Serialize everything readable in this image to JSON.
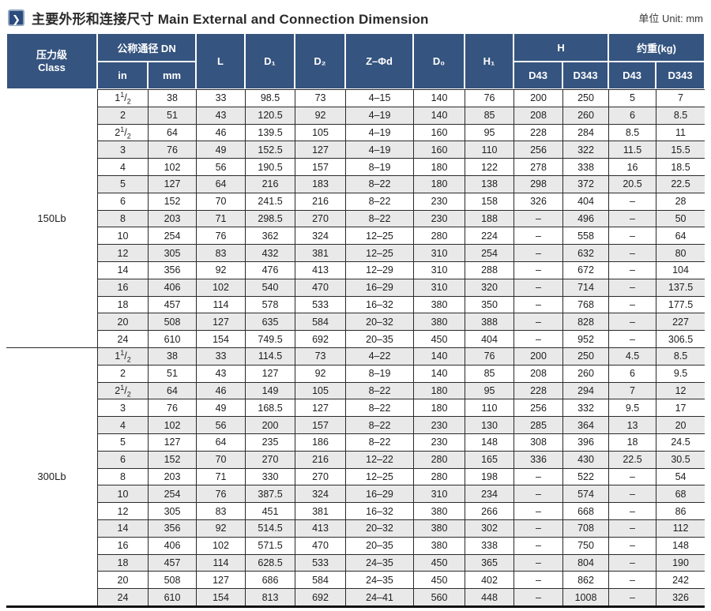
{
  "title": {
    "zh": "主要外形和连接尺寸",
    "en": "Main External and Connection Dimension",
    "full": "主要外形和连接尺寸 Main External and Connection Dimension",
    "icon": "chevron-right-icon",
    "icon_glyph": "❯"
  },
  "unit_label": "单位 Unit: mm",
  "colors": {
    "header_blue": "#35547f",
    "stripe_gray": "#e9e9e9",
    "grid_line": "#2a2a2a",
    "icon_blue": "#2c4c7d",
    "icon_border": "#93a6c4"
  },
  "chart_data": {
    "type": "table",
    "title": "主要外形和连接尺寸 Main External and Connection Dimension",
    "unit": "mm",
    "columns": [
      "压力级 Class",
      "公称通径 DN in",
      "公称通径 DN mm",
      "L",
      "D₁",
      "D₂",
      "Z–Φd",
      "D₀",
      "H₁",
      "H D43",
      "H D343",
      "约重(kg) D43",
      "约重(kg) D343"
    ]
  },
  "table": {
    "headers": {
      "class_zh": "压力级",
      "class_en": "Class",
      "dn": "公称通径 DN",
      "in": "in",
      "mm": "mm",
      "l": "L",
      "d1": "D₁",
      "d2": "D₂",
      "zphid": "Z–Φd",
      "d0": "D₀",
      "h1": "H₁",
      "h": "H",
      "weight": "约重(kg)",
      "h_d43": "D43",
      "h_d343": "D343",
      "w_d43": "D43",
      "w_d343": "D343"
    },
    "col_keys": [
      "in",
      "mm",
      "l",
      "d1",
      "d2",
      "z-phid",
      "d0",
      "h1",
      "h-d43",
      "h-d343",
      "weight-d43",
      "weight-d343"
    ],
    "sections": [
      {
        "class_label": "150Lb",
        "rows": [
          [
            "1½",
            "38",
            "33",
            "98.5",
            "73",
            "4–15",
            "140",
            "76",
            "200",
            "250",
            "5",
            "7"
          ],
          [
            "2",
            "51",
            "43",
            "120.5",
            "92",
            "4–19",
            "140",
            "85",
            "208",
            "260",
            "6",
            "8.5"
          ],
          [
            "2½",
            "64",
            "46",
            "139.5",
            "105",
            "4–19",
            "160",
            "95",
            "228",
            "284",
            "8.5",
            "11"
          ],
          [
            "3",
            "76",
            "49",
            "152.5",
            "127",
            "4–19",
            "160",
            "110",
            "256",
            "322",
            "11.5",
            "15.5"
          ],
          [
            "4",
            "102",
            "56",
            "190.5",
            "157",
            "8–19",
            "180",
            "122",
            "278",
            "338",
            "16",
            "18.5"
          ],
          [
            "5",
            "127",
            "64",
            "216",
            "183",
            "8–22",
            "180",
            "138",
            "298",
            "372",
            "20.5",
            "22.5"
          ],
          [
            "6",
            "152",
            "70",
            "241.5",
            "216",
            "8–22",
            "230",
            "158",
            "326",
            "404",
            "–",
            "28"
          ],
          [
            "8",
            "203",
            "71",
            "298.5",
            "270",
            "8–22",
            "230",
            "188",
            "–",
            "496",
            "–",
            "50"
          ],
          [
            "10",
            "254",
            "76",
            "362",
            "324",
            "12–25",
            "280",
            "224",
            "–",
            "558",
            "–",
            "64"
          ],
          [
            "12",
            "305",
            "83",
            "432",
            "381",
            "12–25",
            "310",
            "254",
            "–",
            "632",
            "–",
            "80"
          ],
          [
            "14",
            "356",
            "92",
            "476",
            "413",
            "12–29",
            "310",
            "288",
            "–",
            "672",
            "–",
            "104"
          ],
          [
            "16",
            "406",
            "102",
            "540",
            "470",
            "16–29",
            "310",
            "320",
            "–",
            "714",
            "–",
            "137.5"
          ],
          [
            "18",
            "457",
            "114",
            "578",
            "533",
            "16–32",
            "380",
            "350",
            "–",
            "768",
            "–",
            "177.5"
          ],
          [
            "20",
            "508",
            "127",
            "635",
            "584",
            "20–32",
            "380",
            "388",
            "–",
            "828",
            "–",
            "227"
          ],
          [
            "24",
            "610",
            "154",
            "749.5",
            "692",
            "20–35",
            "450",
            "404",
            "–",
            "952",
            "–",
            "306.5"
          ]
        ]
      },
      {
        "class_label": "300Lb",
        "rows": [
          [
            "1½",
            "38",
            "33",
            "114.5",
            "73",
            "4–22",
            "140",
            "76",
            "200",
            "250",
            "4.5",
            "8.5"
          ],
          [
            "2",
            "51",
            "43",
            "127",
            "92",
            "8–19",
            "140",
            "85",
            "208",
            "260",
            "6",
            "9.5"
          ],
          [
            "2½",
            "64",
            "46",
            "149",
            "105",
            "8–22",
            "180",
            "95",
            "228",
            "294",
            "7",
            "12"
          ],
          [
            "3",
            "76",
            "49",
            "168.5",
            "127",
            "8–22",
            "180",
            "110",
            "256",
            "332",
            "9.5",
            "17"
          ],
          [
            "4",
            "102",
            "56",
            "200",
            "157",
            "8–22",
            "230",
            "130",
            "285",
            "364",
            "13",
            "20"
          ],
          [
            "5",
            "127",
            "64",
            "235",
            "186",
            "8–22",
            "230",
            "148",
            "308",
            "396",
            "18",
            "24.5"
          ],
          [
            "6",
            "152",
            "70",
            "270",
            "216",
            "12–22",
            "280",
            "165",
            "336",
            "430",
            "22.5",
            "30.5"
          ],
          [
            "8",
            "203",
            "71",
            "330",
            "270",
            "12–25",
            "280",
            "198",
            "–",
            "522",
            "–",
            "54"
          ],
          [
            "10",
            "254",
            "76",
            "387.5",
            "324",
            "16–29",
            "310",
            "234",
            "–",
            "574",
            "–",
            "68"
          ],
          [
            "12",
            "305",
            "83",
            "451",
            "381",
            "16–32",
            "380",
            "266",
            "–",
            "668",
            "–",
            "86"
          ],
          [
            "14",
            "356",
            "92",
            "514.5",
            "413",
            "20–32",
            "380",
            "302",
            "–",
            "708",
            "–",
            "112"
          ],
          [
            "16",
            "406",
            "102",
            "571.5",
            "470",
            "20–35",
            "380",
            "338",
            "–",
            "750",
            "–",
            "148"
          ],
          [
            "18",
            "457",
            "114",
            "628.5",
            "533",
            "24–35",
            "450",
            "365",
            "–",
            "804",
            "–",
            "190"
          ],
          [
            "20",
            "508",
            "127",
            "686",
            "584",
            "24–35",
            "450",
            "402",
            "–",
            "862",
            "–",
            "242"
          ],
          [
            "24",
            "610",
            "154",
            "813",
            "692",
            "24–41",
            "560",
            "448",
            "–",
            "1008",
            "–",
            "326"
          ]
        ]
      }
    ]
  }
}
